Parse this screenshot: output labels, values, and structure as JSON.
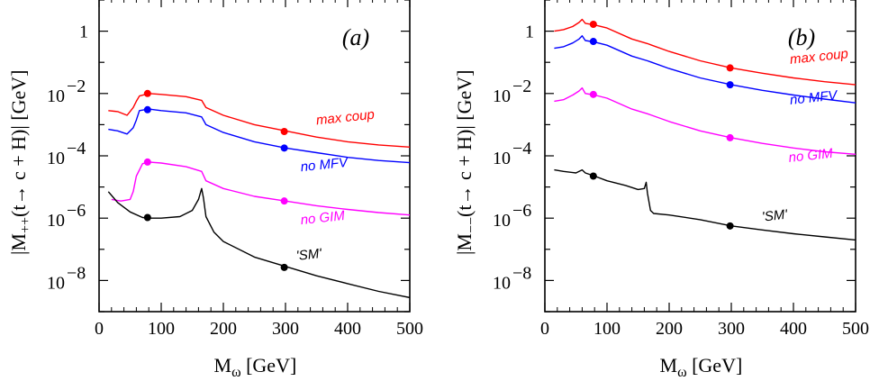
{
  "chart_data": [
    {
      "type": "line",
      "panel_label": "(a)",
      "xlabel": "M",
      "xlabel_sub": "ω",
      "xlabel_unit": " [GeV]",
      "ylabel": "|M",
      "ylabel_sub": "++",
      "ylabel_rest": "(t→ c + H)| [GeV]",
      "xlim": [
        0,
        500
      ],
      "ylim_log10": [
        -9,
        1
      ],
      "xticks": [
        0,
        100,
        200,
        300,
        400,
        500
      ],
      "yticks": [
        {
          "exp": 0,
          "label": "1"
        },
        {
          "exp": -2,
          "base": "10",
          "sup": "−2"
        },
        {
          "exp": -4,
          "base": "10",
          "sup": "−4"
        },
        {
          "exp": -6,
          "base": "10",
          "sup": "−6"
        },
        {
          "exp": -8,
          "base": "10",
          "sup": "−8"
        }
      ],
      "series": [
        {
          "name": "max coup",
          "color": "#ff0000",
          "points": [
            [
              15,
              -2.55
            ],
            [
              30,
              -2.58
            ],
            [
              45,
              -2.7
            ],
            [
              55,
              -2.45
            ],
            [
              60,
              -2.25
            ],
            [
              65,
              -2.08
            ],
            [
              80,
              -2.0
            ],
            [
              100,
              -2.03
            ],
            [
              140,
              -2.1
            ],
            [
              165,
              -2.22
            ],
            [
              172,
              -2.45
            ],
            [
              200,
              -2.7
            ],
            [
              250,
              -3.0
            ],
            [
              300,
              -3.2
            ],
            [
              350,
              -3.4
            ],
            [
              400,
              -3.55
            ],
            [
              450,
              -3.65
            ],
            [
              500,
              -3.72
            ]
          ],
          "markers": [
            [
              78,
              -2.0
            ],
            [
              298,
              -3.22
            ]
          ],
          "label_at": [
            350,
            -3.0
          ]
        },
        {
          "name": "no MFV",
          "color": "#0000ff",
          "points": [
            [
              15,
              -3.15
            ],
            [
              30,
              -3.2
            ],
            [
              45,
              -3.3
            ],
            [
              55,
              -3.1
            ],
            [
              60,
              -2.85
            ],
            [
              65,
              -2.55
            ],
            [
              80,
              -2.5
            ],
            [
              100,
              -2.55
            ],
            [
              140,
              -2.62
            ],
            [
              165,
              -2.75
            ],
            [
              172,
              -3.0
            ],
            [
              200,
              -3.25
            ],
            [
              250,
              -3.55
            ],
            [
              300,
              -3.75
            ],
            [
              350,
              -3.9
            ],
            [
              400,
              -4.05
            ],
            [
              450,
              -4.15
            ],
            [
              500,
              -4.22
            ]
          ],
          "markers": [
            [
              78,
              -2.52
            ],
            [
              298,
              -3.75
            ]
          ],
          "label_at": [
            325,
            -4.5
          ]
        },
        {
          "name": "no GIM",
          "color": "#ff00ff",
          "points": [
            [
              20,
              -5.4
            ],
            [
              35,
              -5.45
            ],
            [
              50,
              -5.4
            ],
            [
              55,
              -5.15
            ],
            [
              60,
              -4.65
            ],
            [
              70,
              -4.25
            ],
            [
              80,
              -4.2
            ],
            [
              100,
              -4.23
            ],
            [
              140,
              -4.35
            ],
            [
              165,
              -4.5
            ],
            [
              172,
              -4.8
            ],
            [
              200,
              -5.05
            ],
            [
              250,
              -5.3
            ],
            [
              300,
              -5.45
            ],
            [
              350,
              -5.6
            ],
            [
              400,
              -5.72
            ],
            [
              450,
              -5.82
            ],
            [
              500,
              -5.9
            ]
          ],
          "markers": [
            [
              78,
              -4.2
            ],
            [
              298,
              -5.45
            ]
          ],
          "label_at": [
            325,
            -6.2
          ]
        },
        {
          "name": "'SM'",
          "color": "#000000",
          "points": [
            [
              15,
              -5.15
            ],
            [
              30,
              -5.5
            ],
            [
              50,
              -5.8
            ],
            [
              70,
              -5.98
            ],
            [
              80,
              -6.0
            ],
            [
              100,
              -6.0
            ],
            [
              130,
              -5.95
            ],
            [
              150,
              -5.75
            ],
            [
              160,
              -5.4
            ],
            [
              165,
              -5.05
            ],
            [
              168,
              -5.35
            ],
            [
              172,
              -5.95
            ],
            [
              185,
              -6.45
            ],
            [
              200,
              -6.75
            ],
            [
              250,
              -7.25
            ],
            [
              300,
              -7.55
            ],
            [
              350,
              -7.85
            ],
            [
              400,
              -8.1
            ],
            [
              450,
              -8.35
            ],
            [
              500,
              -8.55
            ]
          ],
          "markers": [
            [
              78,
              -5.98
            ],
            [
              298,
              -7.58
            ]
          ],
          "label_at": [
            318,
            -7.35
          ]
        }
      ]
    },
    {
      "type": "line",
      "panel_label": "(b)",
      "xlabel": "M",
      "xlabel_sub": "ω",
      "xlabel_unit": " [GeV]",
      "ylabel": "|M",
      "ylabel_sub": "−−",
      "ylabel_rest": "(t→ c + H)| [GeV]",
      "xlim": [
        0,
        500
      ],
      "ylim_log10": [
        -9,
        1
      ],
      "xticks": [
        0,
        100,
        200,
        300,
        400,
        500
      ],
      "yticks": [
        {
          "exp": 0,
          "label": "1"
        },
        {
          "exp": -2,
          "base": "10",
          "sup": "−2"
        },
        {
          "exp": -4,
          "base": "10",
          "sup": "−4"
        },
        {
          "exp": -6,
          "base": "10",
          "sup": "−6"
        },
        {
          "exp": -8,
          "base": "10",
          "sup": "−8"
        }
      ],
      "series": [
        {
          "name": "max coup",
          "color": "#ff0000",
          "points": [
            [
              15,
              0.0
            ],
            [
              30,
              0.05
            ],
            [
              45,
              0.15
            ],
            [
              55,
              0.28
            ],
            [
              60,
              0.38
            ],
            [
              65,
              0.25
            ],
            [
              80,
              0.2
            ],
            [
              100,
              0.1
            ],
            [
              140,
              -0.25
            ],
            [
              165,
              -0.4
            ],
            [
              172,
              -0.45
            ],
            [
              200,
              -0.65
            ],
            [
              250,
              -0.95
            ],
            [
              300,
              -1.18
            ],
            [
              350,
              -1.35
            ],
            [
              400,
              -1.5
            ],
            [
              450,
              -1.62
            ],
            [
              500,
              -1.72
            ]
          ],
          "markers": [
            [
              78,
              0.22
            ],
            [
              298,
              -1.18
            ]
          ],
          "label_at": [
            395,
            -1.05
          ]
        },
        {
          "name": "no MFV",
          "color": "#0000ff",
          "points": [
            [
              15,
              -0.55
            ],
            [
              30,
              -0.5
            ],
            [
              45,
              -0.38
            ],
            [
              55,
              -0.25
            ],
            [
              60,
              -0.15
            ],
            [
              65,
              -0.3
            ],
            [
              80,
              -0.35
            ],
            [
              100,
              -0.45
            ],
            [
              140,
              -0.8
            ],
            [
              165,
              -0.95
            ],
            [
              172,
              -1.0
            ],
            [
              200,
              -1.2
            ],
            [
              250,
              -1.5
            ],
            [
              300,
              -1.72
            ],
            [
              350,
              -1.9
            ],
            [
              400,
              -2.05
            ],
            [
              450,
              -2.18
            ],
            [
              500,
              -2.3
            ]
          ],
          "markers": [
            [
              78,
              -0.33
            ],
            [
              298,
              -1.72
            ]
          ],
          "label_at": [
            395,
            -2.35
          ]
        },
        {
          "name": "no GIM",
          "color": "#ff00ff",
          "points": [
            [
              15,
              -2.25
            ],
            [
              30,
              -2.2
            ],
            [
              45,
              -2.05
            ],
            [
              55,
              -1.92
            ],
            [
              60,
              -1.82
            ],
            [
              65,
              -2.0
            ],
            [
              80,
              -2.05
            ],
            [
              100,
              -2.15
            ],
            [
              140,
              -2.5
            ],
            [
              165,
              -2.65
            ],
            [
              172,
              -2.7
            ],
            [
              200,
              -2.9
            ],
            [
              250,
              -3.2
            ],
            [
              300,
              -3.42
            ],
            [
              350,
              -3.6
            ],
            [
              400,
              -3.75
            ],
            [
              450,
              -3.87
            ],
            [
              500,
              -3.95
            ]
          ],
          "markers": [
            [
              78,
              -2.03
            ],
            [
              298,
              -3.42
            ]
          ],
          "label_at": [
            393,
            -4.2
          ]
        },
        {
          "name": "'SM'",
          "color": "#000000",
          "points": [
            [
              15,
              -4.45
            ],
            [
              30,
              -4.5
            ],
            [
              50,
              -4.55
            ],
            [
              60,
              -4.45
            ],
            [
              65,
              -4.55
            ],
            [
              80,
              -4.65
            ],
            [
              100,
              -4.8
            ],
            [
              130,
              -4.95
            ],
            [
              150,
              -5.08
            ],
            [
              160,
              -5.05
            ],
            [
              163,
              -4.85
            ],
            [
              165,
              -5.2
            ],
            [
              170,
              -5.75
            ],
            [
              175,
              -5.85
            ],
            [
              200,
              -5.9
            ],
            [
              250,
              -6.05
            ],
            [
              300,
              -6.25
            ],
            [
              350,
              -6.38
            ],
            [
              400,
              -6.5
            ],
            [
              450,
              -6.6
            ],
            [
              500,
              -6.7
            ]
          ],
          "markers": [
            [
              78,
              -4.65
            ],
            [
              298,
              -6.25
            ]
          ],
          "label_at": [
            350,
            -6.1
          ]
        }
      ]
    }
  ]
}
